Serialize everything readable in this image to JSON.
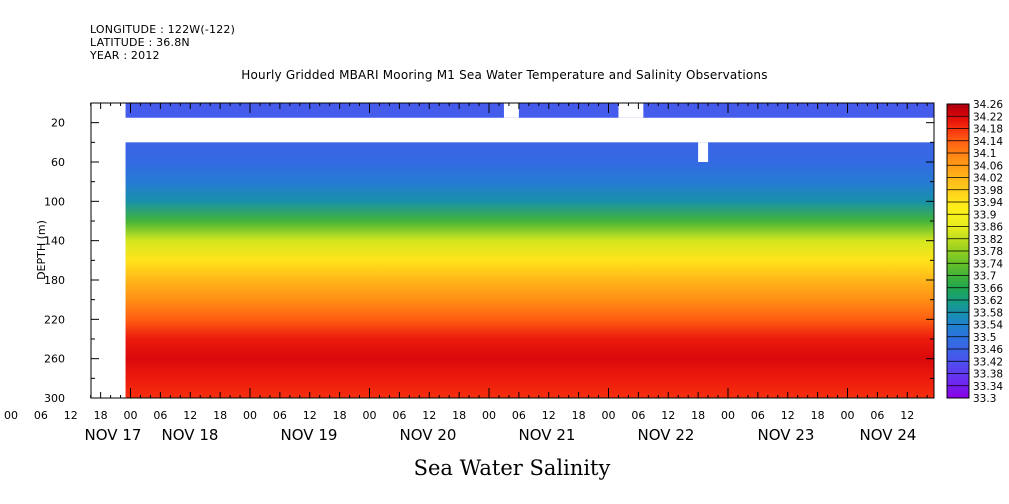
{
  "header": {
    "longitude": "LONGITUDE : 122W(-122)",
    "latitude": "LATITUDE : 36.8N",
    "year": "YEAR : 2012"
  },
  "chart_data": {
    "type": "heatmap",
    "title": "Hourly Gridded MBARI Mooring M1 Sea Water Temperature and Salinity Observations",
    "xlabel": "Sea Water Salinity",
    "ylabel": "DEPTH (m)",
    "ylim": [
      300,
      0
    ],
    "y_ticks": [
      20,
      60,
      100,
      140,
      180,
      220,
      260,
      300
    ],
    "x_hour_ticks": [
      "18",
      "00",
      "06",
      "12",
      "18",
      "00",
      "06",
      "12",
      "18",
      "00",
      "06",
      "12",
      "18",
      "00",
      "06",
      "12",
      "18",
      "00",
      "06",
      "12",
      "18",
      "00",
      "06",
      "12",
      "18",
      "00",
      "06",
      "12",
      "18",
      "00",
      "06",
      "12"
    ],
    "x_day_labels": [
      "NOV 17",
      "NOV 18",
      "NOV 19",
      "NOV 20",
      "NOV 21",
      "NOV 22",
      "NOV 23",
      "NOV 24"
    ],
    "colorbar": {
      "min": 33.3,
      "max": 34.26,
      "labels": [
        "34.26",
        "34.22",
        "34.18",
        "34.14",
        "34.1",
        "34.06",
        "34.02",
        "33.98",
        "33.94",
        "33.9",
        "33.86",
        "33.82",
        "33.78",
        "33.74",
        "33.7",
        "33.66",
        "33.62",
        "33.58",
        "33.54",
        "33.5",
        "33.46",
        "33.42",
        "33.38",
        "33.34",
        "33.3"
      ]
    },
    "depth_profile": {
      "depths_m": [
        10,
        40,
        60,
        80,
        100,
        120,
        140,
        160,
        180,
        200,
        220,
        240,
        260,
        280,
        300
      ],
      "salinity": [
        33.44,
        33.46,
        33.48,
        33.52,
        33.58,
        33.7,
        33.84,
        33.94,
        34.02,
        34.08,
        34.14,
        34.2,
        34.22,
        34.2,
        34.18
      ]
    },
    "data_gaps": [
      {
        "from": "NOV 17 12:00",
        "to": "NOV 17 23:00",
        "depth_range_m": [
          0,
          300
        ]
      },
      {
        "from": "NOV 17 23:00",
        "to": "NOV 24 23:00",
        "depth_range_m": [
          15,
          40
        ]
      },
      {
        "from": "NOV 21 03:00",
        "to": "NOV 21 06:00",
        "depth_range_m": [
          0,
          15
        ]
      },
      {
        "from": "NOV 22 02:00",
        "to": "NOV 22 07:00",
        "depth_range_m": [
          0,
          15
        ]
      },
      {
        "from": "NOV 22 18:00",
        "to": "NOV 22 20:00",
        "depth_range_m": [
          40,
          60
        ]
      }
    ]
  }
}
